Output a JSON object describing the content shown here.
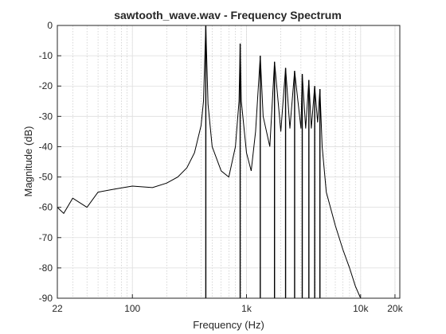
{
  "chart_data": {
    "type": "line",
    "title": "sawtooth_wave.wav - Frequency Spectrum",
    "xlabel": "Frequency (Hz)",
    "ylabel": "Magnitude (dB)",
    "xscale": "log",
    "xlim": [
      22,
      22050
    ],
    "ylim": [
      -90,
      0
    ],
    "xticks": [
      22,
      100,
      1000,
      10000,
      20000
    ],
    "xtick_labels": [
      "22",
      "100",
      "1k",
      "10k",
      "20k"
    ],
    "yticks": [
      0,
      -10,
      -20,
      -30,
      -40,
      -50,
      -60,
      -70,
      -80,
      -90
    ],
    "ytick_labels": [
      "0",
      "-10",
      "-20",
      "-30",
      "-40",
      "-50",
      "-60",
      "-70",
      "-80",
      "-90"
    ],
    "grid": true,
    "minor_grid": true,
    "line_color": "#000000",
    "series": [
      {
        "x": [
          22,
          25,
          30,
          40,
          50,
          70,
          100,
          150,
          200,
          250,
          300,
          350,
          400,
          420,
          440,
          460,
          500,
          600,
          700,
          800,
          860,
          880,
          900,
          1000,
          1100,
          1200,
          1320,
          1400,
          1600,
          1760,
          2000,
          2200,
          2400,
          2640,
          3000,
          3080,
          3300,
          3520,
          3700,
          3960,
          4200,
          4400,
          4600,
          5000,
          6000,
          7000,
          8000,
          9000,
          10000
        ],
        "y": [
          -60,
          -62,
          -57,
          -60,
          -55,
          -54,
          -53,
          -53.5,
          -52,
          -50,
          -47,
          -42,
          -33,
          -25,
          0,
          -26,
          -40,
          -48,
          -50,
          -40,
          -25,
          -6,
          -25,
          -42,
          -48,
          -35,
          -10,
          -30,
          -40,
          -12,
          -35,
          -14,
          -34,
          -15,
          -34,
          -16,
          -34,
          -18,
          -34,
          -20,
          -32,
          -21,
          -40,
          -55,
          -66,
          -74,
          -80,
          -86,
          -90
        ]
      }
    ],
    "harmonics": {
      "x": [
        440,
        880,
        1320,
        1760,
        2200,
        2640,
        3080,
        3520,
        3960,
        4400
      ],
      "y": [
        0,
        -6,
        -10,
        -12,
        -14,
        -15,
        -16,
        -18,
        -20,
        -21
      ]
    }
  }
}
